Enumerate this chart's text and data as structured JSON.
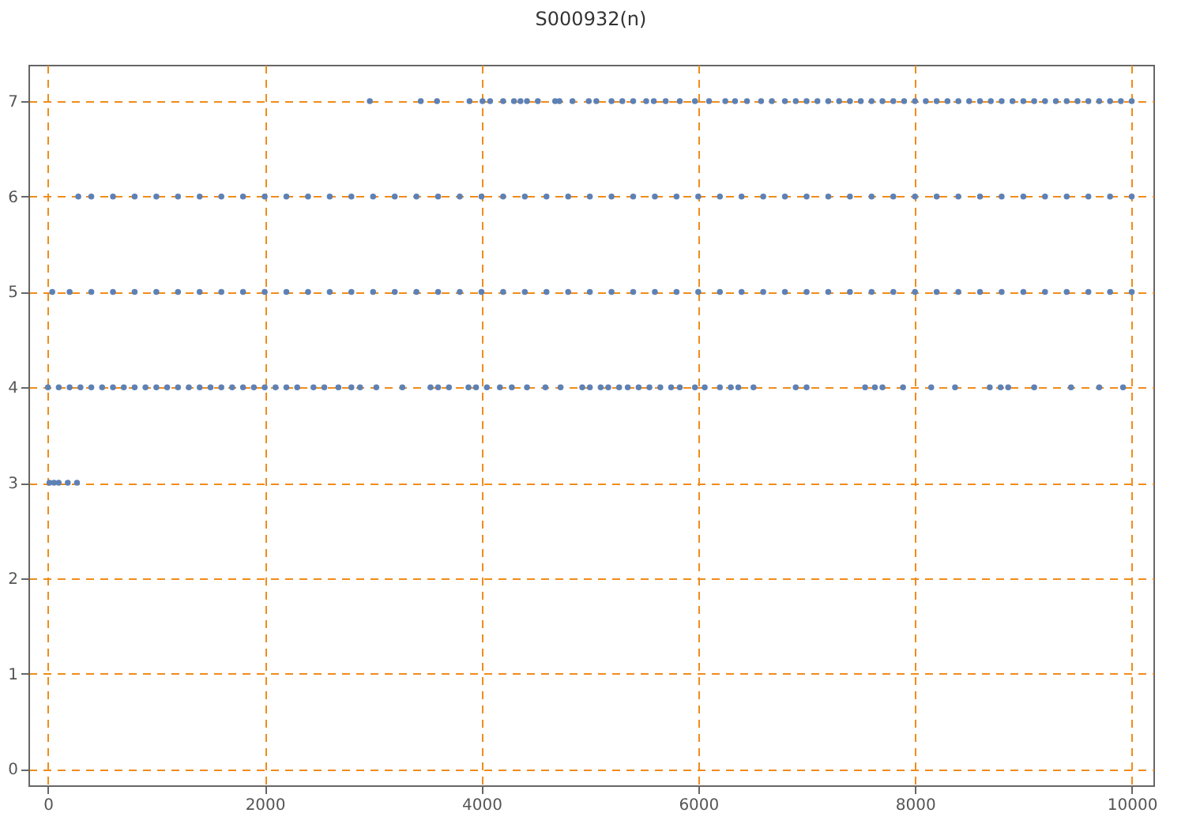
{
  "chart_data": {
    "type": "scatter",
    "title": "S000932(n)",
    "xlim": [
      -180,
      10200
    ],
    "ylim": [
      -0.17,
      7.38
    ],
    "xticks": [
      0,
      2000,
      4000,
      6000,
      8000,
      10000
    ],
    "yticks": [
      0,
      1,
      2,
      3,
      4,
      5,
      6,
      7
    ],
    "grid": true,
    "marker": "circle",
    "series": [
      {
        "color": "#5e81b5",
        "x": [
          14,
          56,
          99,
          183,
          268
        ],
        "values": [
          3,
          3,
          3,
          3,
          3
        ]
      },
      {
        "color": "#5e81b5",
        "x": [
          0,
          100,
          200,
          300,
          400,
          500,
          600,
          700,
          800,
          900,
          1000,
          1100,
          1200,
          1300,
          1400,
          1500,
          1600,
          1700,
          1800,
          1900,
          2000,
          2100,
          2200,
          2300,
          2450,
          2550,
          2680,
          2800,
          2880,
          3030,
          3270,
          3530,
          3600,
          3700,
          3880,
          3950,
          4050,
          4170,
          4280,
          4420,
          4590,
          4730,
          4930,
          5000,
          5100,
          5170,
          5270,
          5350,
          5450,
          5550,
          5650,
          5750,
          5830,
          5970,
          6060,
          6200,
          6300,
          6370,
          6510,
          6900,
          7000,
          7540,
          7630,
          7700,
          7890,
          8150,
          8370,
          8690,
          8790,
          8860,
          9100,
          9440,
          9700,
          9920
        ],
        "values": [
          4,
          4,
          4,
          4,
          4,
          4,
          4,
          4,
          4,
          4,
          4,
          4,
          4,
          4,
          4,
          4,
          4,
          4,
          4,
          4,
          4,
          4,
          4,
          4,
          4,
          4,
          4,
          4,
          4,
          4,
          4,
          4,
          4,
          4,
          4,
          4,
          4,
          4,
          4,
          4,
          4,
          4,
          4,
          4,
          4,
          4,
          4,
          4,
          4,
          4,
          4,
          4,
          4,
          4,
          4,
          4,
          4,
          4,
          4,
          4,
          4,
          4,
          4,
          4,
          4,
          4,
          4,
          4,
          4,
          4,
          4,
          4,
          4,
          4
        ]
      },
      {
        "color": "#5e81b5",
        "x": [
          40,
          200,
          400,
          600,
          800,
          1000,
          1200,
          1400,
          1600,
          1800,
          2000,
          2200,
          2400,
          2600,
          2800,
          3000,
          3200,
          3400,
          3600,
          3800,
          4000,
          4200,
          4400,
          4600,
          4800,
          5000,
          5200,
          5400,
          5600,
          5800,
          6000,
          6200,
          6400,
          6600,
          6800,
          7000,
          7200,
          7400,
          7600,
          7800,
          8000,
          8200,
          8400,
          8600,
          8800,
          9000,
          9200,
          9400,
          9600,
          9800,
          10000
        ],
        "values": [
          5,
          5,
          5,
          5,
          5,
          5,
          5,
          5,
          5,
          5,
          5,
          5,
          5,
          5,
          5,
          5,
          5,
          5,
          5,
          5,
          5,
          5,
          5,
          5,
          5,
          5,
          5,
          5,
          5,
          5,
          5,
          5,
          5,
          5,
          5,
          5,
          5,
          5,
          5,
          5,
          5,
          5,
          5,
          5,
          5,
          5,
          5,
          5,
          5,
          5,
          5
        ]
      },
      {
        "color": "#5e81b5",
        "x": [
          280,
          400,
          600,
          800,
          1000,
          1200,
          1400,
          1600,
          1800,
          2000,
          2200,
          2400,
          2600,
          2800,
          3000,
          3200,
          3400,
          3600,
          3800,
          4000,
          4200,
          4400,
          4600,
          4800,
          5000,
          5200,
          5400,
          5600,
          5800,
          6000,
          6200,
          6400,
          6600,
          6800,
          7000,
          7200,
          7400,
          7600,
          7800,
          8000,
          8200,
          8400,
          8600,
          8800,
          9000,
          9200,
          9400,
          9600,
          9800,
          10000
        ],
        "values": [
          6,
          6,
          6,
          6,
          6,
          6,
          6,
          6,
          6,
          6,
          6,
          6,
          6,
          6,
          6,
          6,
          6,
          6,
          6,
          6,
          6,
          6,
          6,
          6,
          6,
          6,
          6,
          6,
          6,
          6,
          6,
          6,
          6,
          6,
          6,
          6,
          6,
          6,
          6,
          6,
          6,
          6,
          6,
          6,
          6,
          6,
          6,
          6,
          6,
          6
        ]
      },
      {
        "color": "#5e81b5",
        "x": [
          2970,
          3440,
          3590,
          3890,
          4010,
          4080,
          4200,
          4300,
          4360,
          4420,
          4520,
          4680,
          4720,
          4840,
          4990,
          5060,
          5200,
          5300,
          5400,
          5520,
          5590,
          5700,
          5830,
          5970,
          6100,
          6250,
          6340,
          6450,
          6580,
          6680,
          6800,
          6900,
          7000,
          7100,
          7200,
          7300,
          7400,
          7500,
          7600,
          7700,
          7800,
          7900,
          8000,
          8100,
          8200,
          8300,
          8400,
          8500,
          8600,
          8700,
          8800,
          8900,
          9000,
          9100,
          9200,
          9300,
          9400,
          9500,
          9600,
          9700,
          9800,
          9900,
          10000
        ],
        "values": [
          7,
          7,
          7,
          7,
          7,
          7,
          7,
          7,
          7,
          7,
          7,
          7,
          7,
          7,
          7,
          7,
          7,
          7,
          7,
          7,
          7,
          7,
          7,
          7,
          7,
          7,
          7,
          7,
          7,
          7,
          7,
          7,
          7,
          7,
          7,
          7,
          7,
          7,
          7,
          7,
          7,
          7,
          7,
          7,
          7,
          7,
          7,
          7,
          7,
          7,
          7,
          7,
          7,
          7,
          7,
          7,
          7,
          7,
          7,
          7,
          7,
          7,
          7
        ]
      }
    ]
  }
}
